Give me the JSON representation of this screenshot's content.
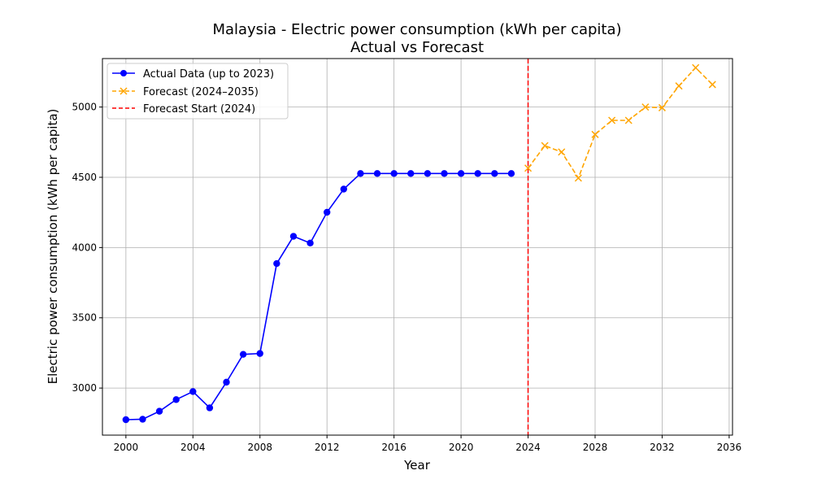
{
  "chart_data": {
    "type": "line",
    "title": "Malaysia - Electric power consumption (kWh per capita)",
    "subtitle": "Actual vs Forecast",
    "xlabel": "Year",
    "ylabel": "Electric power consumption (kWh per capita)",
    "xlim": [
      1998.6,
      2036.2
    ],
    "ylim": [
      2665,
      5345
    ],
    "x_ticks": [
      2000,
      2004,
      2008,
      2012,
      2016,
      2020,
      2024,
      2028,
      2032,
      2036
    ],
    "y_ticks": [
      3000,
      3500,
      4000,
      4500,
      5000
    ],
    "grid": true,
    "legend_position": "top-left",
    "series": [
      {
        "name": "Actual Data (up to 2023)",
        "color": "#0000ff",
        "line_style": "solid",
        "marker": "circle",
        "x": [
          2000,
          2001,
          2002,
          2003,
          2004,
          2005,
          2006,
          2007,
          2008,
          2009,
          2010,
          2011,
          2012,
          2013,
          2014,
          2015,
          2016,
          2017,
          2018,
          2019,
          2020,
          2021,
          2022,
          2023
        ],
        "y": [
          2775,
          2778,
          2835,
          2918,
          2975,
          2859,
          3042,
          3240,
          3246,
          3886,
          4080,
          4032,
          4251,
          4416,
          4527,
          4527,
          4527,
          4527,
          4527,
          4527,
          4527,
          4527,
          4527,
          4527
        ]
      },
      {
        "name": "Forecast (2024–2035)",
        "color": "#ffa500",
        "line_style": "dashed",
        "marker": "x",
        "x": [
          2024,
          2025,
          2026,
          2027,
          2028,
          2029,
          2030,
          2031,
          2032,
          2033,
          2034,
          2035
        ],
        "y": [
          4565,
          4725,
          4680,
          4495,
          4805,
          4905,
          4905,
          5000,
          4995,
          5150,
          5280,
          5160
        ]
      }
    ],
    "reference_lines": [
      {
        "name": "Forecast Start (2024)",
        "x": 2024,
        "color": "#ff0000",
        "line_style": "dashed"
      }
    ]
  }
}
